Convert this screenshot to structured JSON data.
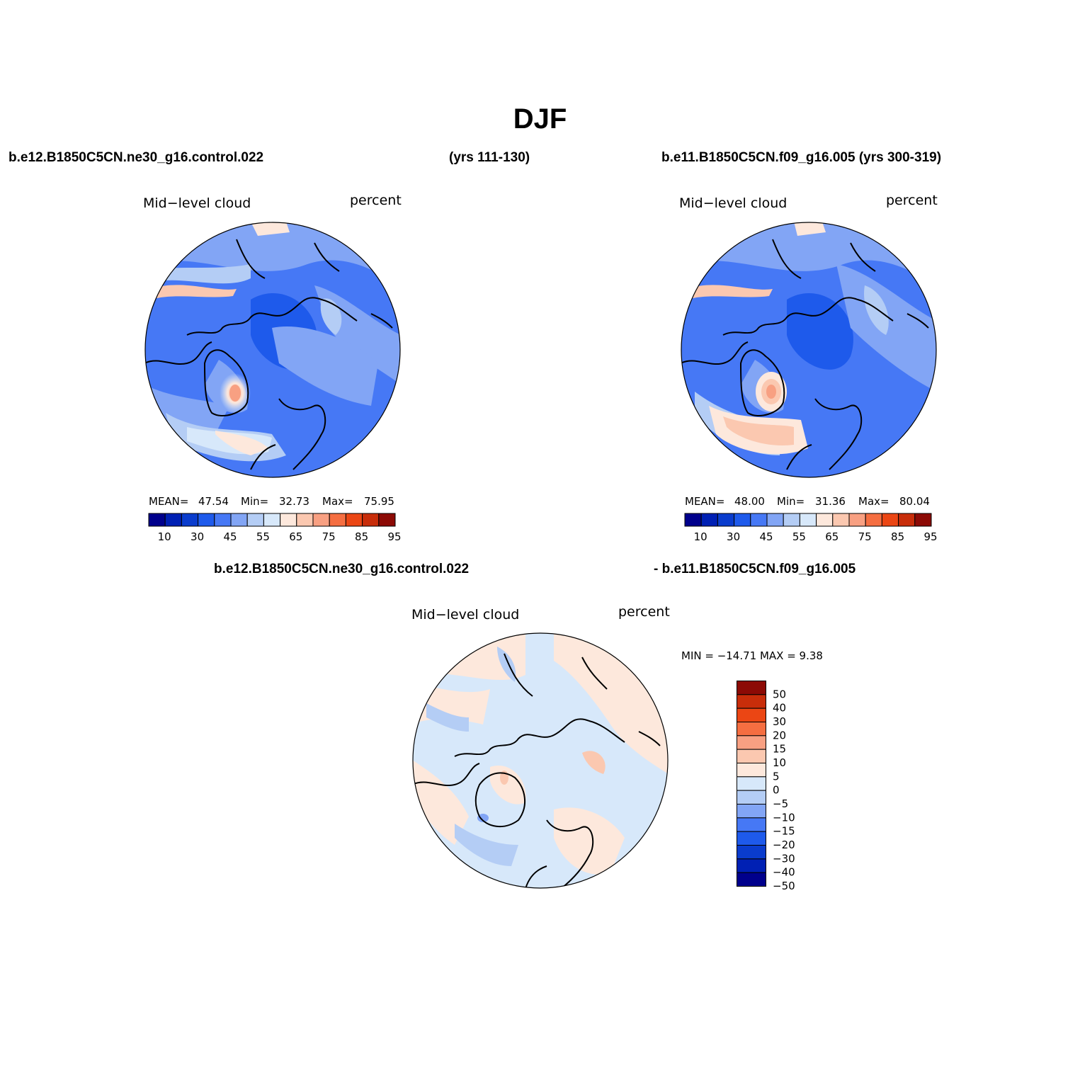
{
  "title": "DJF",
  "header": {
    "case1": "b.e12.B1850C5CN.ne30_g16.control.022",
    "years1": "(yrs 111-130)",
    "case2": "b.e11.B1850C5CN.f09_g16.005 (yrs 300-319)",
    "diff_case1": "b.e12.B1850C5CN.ne30_g16.control.022",
    "diff_case2": "- b.e11.B1850C5CN.f09_g16.005"
  },
  "panels": [
    {
      "left_label": "Mid−level cloud",
      "right_label": "percent",
      "mean_label": "MEAN=",
      "mean": "47.54",
      "min_label": "Min=",
      "min": "32.73",
      "max_label": "Max=",
      "max": "75.95"
    },
    {
      "left_label": "Mid−level cloud",
      "right_label": "percent",
      "mean_label": "MEAN=",
      "mean": "48.00",
      "min_label": "Min=",
      "min": "31.36",
      "max_label": "Max=",
      "max": "80.04"
    },
    {
      "left_label": "Mid−level cloud",
      "right_label": "percent",
      "minmax_text": "MIN = −14.71 MAX =    9.38"
    }
  ],
  "colorbar_horizontal": {
    "colors": [
      "#00008c",
      "#0020b4",
      "#0a3ccd",
      "#1e5aeb",
      "#4678f5",
      "#82a5f5",
      "#b4cdf5",
      "#d7e8fa",
      "#fde8dc",
      "#fbc8b0",
      "#f8a082",
      "#f56e41",
      "#eb4614",
      "#c82d0a",
      "#8c0a05"
    ],
    "labels": [
      "10",
      "30",
      "45",
      "55",
      "65",
      "75",
      "85",
      "95"
    ]
  },
  "colorbar_vertical": {
    "colors": [
      "#8c0a05",
      "#c82d0a",
      "#eb4614",
      "#f56e41",
      "#f8a082",
      "#fbc8b0",
      "#fde8dc",
      "#d7e8fa",
      "#b4cdf5",
      "#82a5f5",
      "#4678f5",
      "#1e5aeb",
      "#0a3ccd",
      "#0020b4",
      "#00008c"
    ],
    "labels": [
      "50",
      "40",
      "30",
      "20",
      "15",
      "10",
      "5",
      "0",
      "−5",
      "−10",
      "−15",
      "−20",
      "−30",
      "−40",
      "−50"
    ]
  }
}
